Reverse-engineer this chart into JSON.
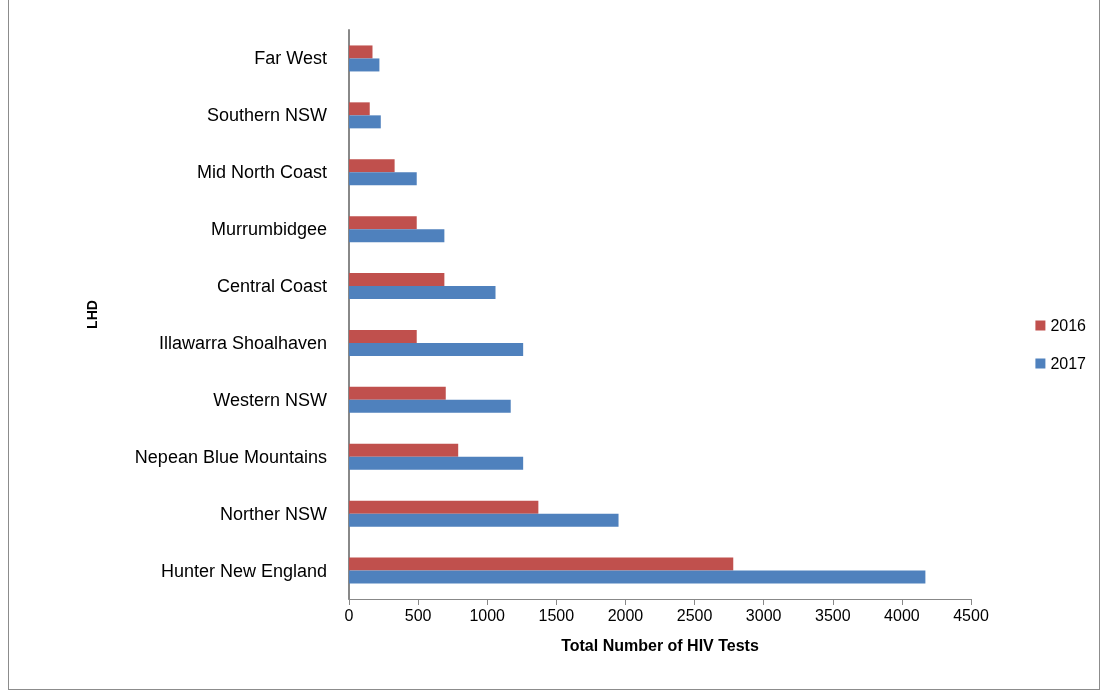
{
  "chart_data": {
    "type": "bar",
    "orientation": "horizontal",
    "xlabel": "Total Number of HIV Tests",
    "ylabel": "LHD",
    "categories": [
      "Far West",
      "Southern NSW",
      "Mid North Coast",
      "Murrumbidgee",
      "Central Coast",
      "Illawarra Shoalhaven",
      "Western NSW",
      "Nepean Blue Mountains",
      "Norther NSW",
      "Hunter New England"
    ],
    "series": [
      {
        "name": "2016",
        "color": "#c0504d",
        "values": [
          170,
          150,
          330,
          490,
          690,
          490,
          700,
          790,
          1370,
          2780
        ]
      },
      {
        "name": "2017",
        "color": "#4f81bd",
        "values": [
          220,
          230,
          490,
          690,
          1060,
          1260,
          1170,
          1260,
          1950,
          4170
        ]
      }
    ],
    "xlim": [
      0,
      4500
    ],
    "xticks": [
      0,
      500,
      1000,
      1500,
      2000,
      2500,
      3000,
      3500,
      4000,
      4500
    ],
    "grid": false,
    "legend": "right"
  }
}
